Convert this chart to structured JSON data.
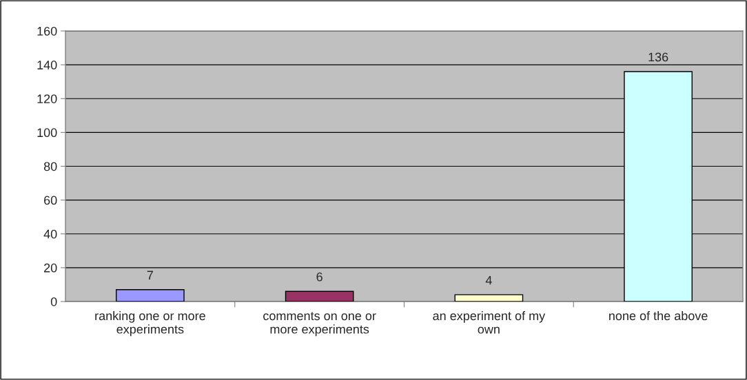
{
  "chart_data": {
    "type": "bar",
    "categories": [
      "ranking one or more\nexperiments",
      "comments on one or\nmore experiments",
      "an experiment of my\nown",
      "none of the above"
    ],
    "values": [
      7,
      6,
      4,
      136
    ],
    "colors": [
      "#9999ff",
      "#993366",
      "#ffffcc",
      "#ccffff"
    ],
    "ylim": [
      0,
      160
    ],
    "yticks": [
      0,
      20,
      40,
      60,
      80,
      100,
      120,
      140,
      160
    ],
    "grid": "y",
    "data_labels": true
  }
}
